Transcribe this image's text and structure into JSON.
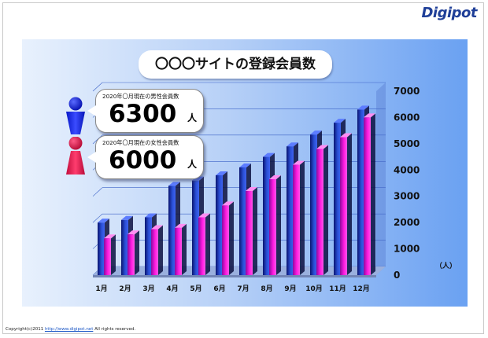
{
  "logo": {
    "text": "Digipot"
  },
  "chart_data": {
    "type": "bar",
    "title": "〇〇〇サイトの登録会員数",
    "categories": [
      "1月",
      "2月",
      "3月",
      "4月",
      "5月",
      "6月",
      "7月",
      "8月",
      "9月",
      "10月",
      "11月",
      "12月"
    ],
    "series": [
      {
        "values": [
          2000,
          2100,
          2200,
          3400,
          3600,
          3800,
          4100,
          4500,
          4900,
          5350,
          5800,
          6300
        ],
        "color": "#2a4fd6"
      },
      {
        "values": [
          1400,
          1550,
          1750,
          1800,
          2200,
          2650,
          3200,
          3650,
          4200,
          4800,
          5250,
          6000
        ],
        "color": "#ff1ae0"
      }
    ],
    "yticks": [
      0,
      1000,
      2000,
      3000,
      4000,
      5000,
      6000,
      7000
    ],
    "ylim": [
      0,
      7000
    ],
    "ylabel": "（人）",
    "grid": true
  },
  "callouts": [
    {
      "caption": "2020年〇月現在の男性会員数",
      "value": "6300",
      "unit": "人"
    },
    {
      "caption": "2020年〇月現在の女性会員数",
      "value": "6000",
      "unit": "人"
    }
  ],
  "colors": {
    "male": "#0a1bd8",
    "female": "#e0144a"
  },
  "icons": [
    "male-person-icon",
    "female-person-icon"
  ],
  "footer": {
    "text": "Copyright(c)2011 ",
    "url": "http://www.digipot.net",
    "suffix": " All rights reserved."
  }
}
